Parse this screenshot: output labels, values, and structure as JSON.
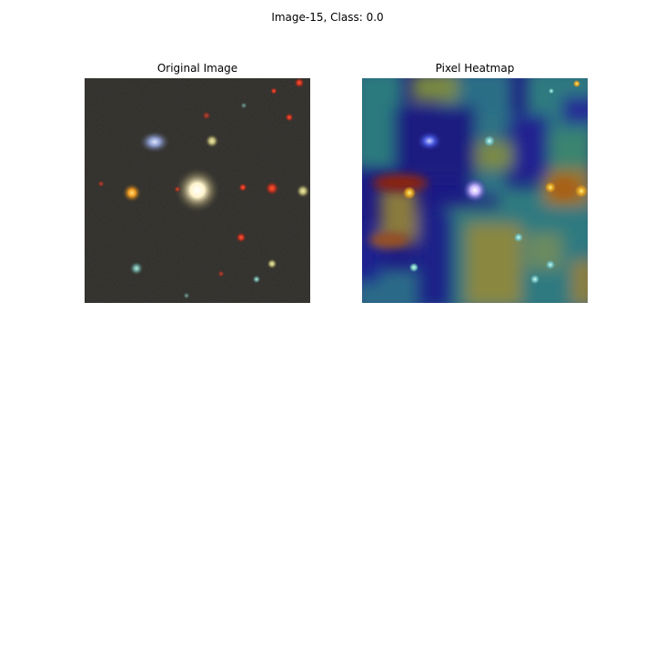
{
  "figure": {
    "suptitle": "Image-15, Class: 0.0"
  },
  "panels": [
    {
      "title": "Original Image",
      "content": "astronomical-cutout"
    },
    {
      "title": "Pixel Heatmap",
      "content": "heatmap-overlay",
      "colormap": "jet"
    }
  ]
}
